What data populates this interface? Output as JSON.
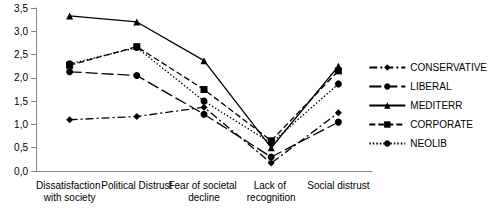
{
  "chart_data": {
    "type": "line",
    "categories": [
      "Dissatisfaction with society",
      "Political Distrust",
      "Fear of societal decline",
      "Lack of recognition",
      "Social distrust"
    ],
    "series": [
      {
        "name": "CONSERVATIVE",
        "color": "#000000",
        "marker": "diamond",
        "line_style": "dashdot",
        "values": [
          1.1,
          1.17,
          1.37,
          0.17,
          1.25
        ]
      },
      {
        "name": "LIBERAL",
        "color": "#000000",
        "marker": "circle",
        "line_style": "longdash",
        "values": [
          2.13,
          2.05,
          1.22,
          0.3,
          1.05
        ]
      },
      {
        "name": "MEDITERR",
        "color": "#000000",
        "marker": "triangle",
        "line_style": "solid",
        "values": [
          3.33,
          3.2,
          2.37,
          0.5,
          2.25
        ]
      },
      {
        "name": "CORPORATE",
        "color": "#000000",
        "marker": "square",
        "line_style": "dashed",
        "values": [
          2.27,
          2.67,
          1.75,
          0.65,
          2.15
        ]
      },
      {
        "name": "NEOLIB",
        "color": "#000000",
        "marker": "circle",
        "line_style": "dotted",
        "values": [
          2.3,
          2.65,
          1.5,
          0.6,
          1.87
        ]
      }
    ],
    "ylim": [
      0,
      3.5
    ],
    "yticks": [
      {
        "value": 0,
        "label": "0,0"
      },
      {
        "value": 0.5,
        "label": "0,5"
      },
      {
        "value": 1,
        "label": "1,0"
      },
      {
        "value": 1.5,
        "label": "1,5"
      },
      {
        "value": 2,
        "label": "2,0"
      },
      {
        "value": 2.5,
        "label": "2,5"
      },
      {
        "value": 3,
        "label": "3,0"
      },
      {
        "value": 3.5,
        "label": "3,5"
      }
    ],
    "grid": false,
    "legend": "right"
  }
}
